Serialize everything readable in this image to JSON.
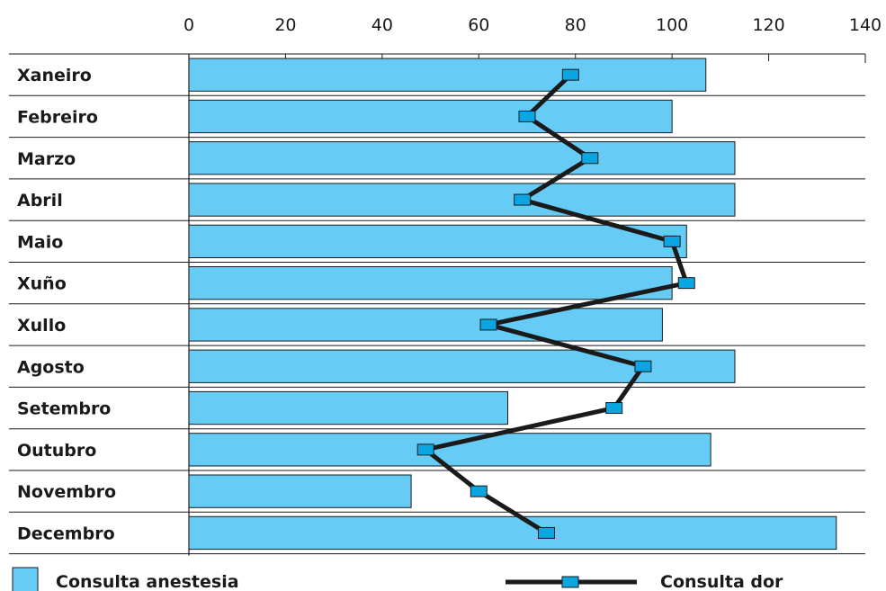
{
  "chart_data": {
    "type": "bar",
    "orientation": "horizontal",
    "categories": [
      "Xaneiro",
      "Febreiro",
      "Marzo",
      "Abril",
      "Maio",
      "Xuño",
      "Xullo",
      "Agosto",
      "Setembro",
      "Outubro",
      "Novembro",
      "Decembro"
    ],
    "series": [
      {
        "name": "Consulta anestesia",
        "type": "bar",
        "color": "#66ccf5",
        "values": [
          107,
          100,
          113,
          113,
          103,
          100,
          98,
          113,
          66,
          108,
          46,
          134
        ]
      },
      {
        "name": "Consulta dor",
        "type": "line",
        "color": "#1a1a1a",
        "marker_color": "#0aa6e3",
        "values": [
          79,
          70,
          83,
          69,
          100,
          103,
          62,
          94,
          88,
          49,
          60,
          74
        ]
      }
    ],
    "xlim": [
      0,
      140
    ],
    "x_ticks": [
      "0",
      "20",
      "40",
      "60",
      "80",
      "100",
      "120",
      "140"
    ],
    "x_axis_position": "top",
    "grid": "horizontal row separators",
    "legend_placement": "bottom"
  }
}
